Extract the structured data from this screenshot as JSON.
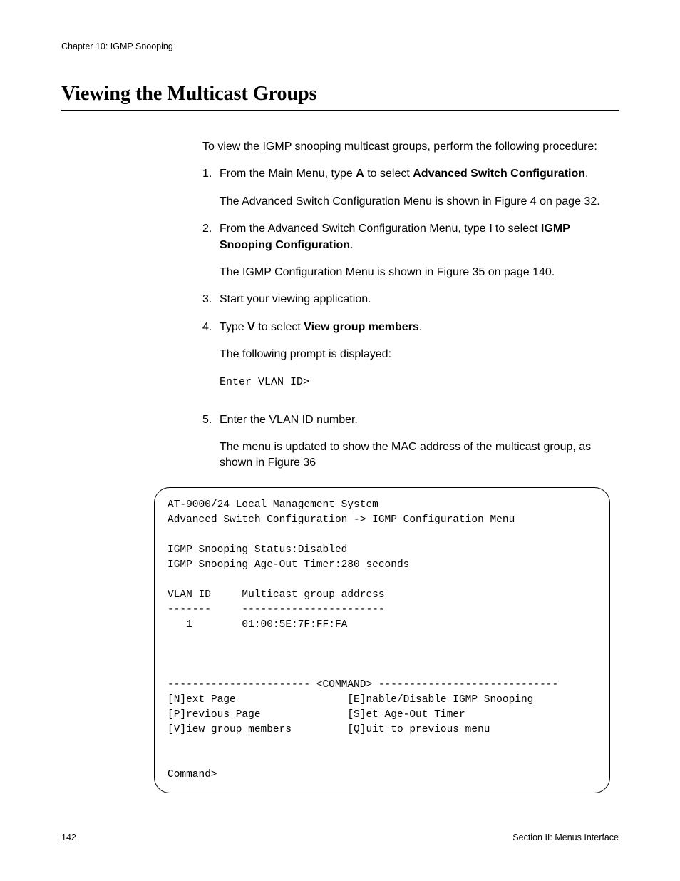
{
  "header": {
    "chapter": "Chapter 10: IGMP Snooping"
  },
  "title": "Viewing the Multicast Groups",
  "intro": "To view the IGMP snooping multicast groups, perform the following procedure:",
  "steps": {
    "s1": {
      "num": "1.",
      "pre": "From the Main Menu, type ",
      "key": "A",
      "mid": " to select ",
      "sel": "Advanced Switch Configuration",
      "post": ".",
      "result": "The Advanced Switch Configuration Menu is shown in Figure 4 on page 32."
    },
    "s2": {
      "num": "2.",
      "pre": "From the Advanced Switch Configuration Menu, type ",
      "key": "I",
      "mid": " to select ",
      "sel": "IGMP Snooping Configuration",
      "post": ".",
      "result": "The IGMP Configuration Menu is shown in Figure 35 on page 140."
    },
    "s3": {
      "num": "3.",
      "text": "Start your viewing application."
    },
    "s4": {
      "num": "4.",
      "pre": "Type ",
      "key": "V",
      "mid": " to select ",
      "sel": "View group members",
      "post": ".",
      "result": "The following prompt is displayed:",
      "prompt": "Enter VLAN ID>"
    },
    "s5": {
      "num": "5.",
      "text": "Enter the VLAN ID number.",
      "result": "The menu is updated to show the MAC address of the multicast group, as shown in Figure 36"
    }
  },
  "terminal": {
    "line1": "AT-9000/24 Local Management System",
    "line2": "Advanced Switch Configuration -> IGMP Configuration Menu",
    "blank": "",
    "status": "IGMP Snooping Status:Disabled",
    "ageout": "IGMP Snooping Age-Out Timer:280 seconds",
    "hdr": "VLAN ID     Multicast group address",
    "hdr_sep": "-------     -----------------------",
    "row1": "   1        01:00:5E:7F:FF:FA",
    "cmd_sep": "----------------------- <COMMAND> -----------------------------",
    "cmd1": "[N]ext Page                  [E]nable/Disable IGMP Snooping",
    "cmd2": "[P]revious Page              [S]et Age-Out Timer",
    "cmd3": "[V]iew group members         [Q]uit to previous menu",
    "prompt": "Command>"
  },
  "footer": {
    "page": "142",
    "section": "Section II: Menus Interface"
  }
}
